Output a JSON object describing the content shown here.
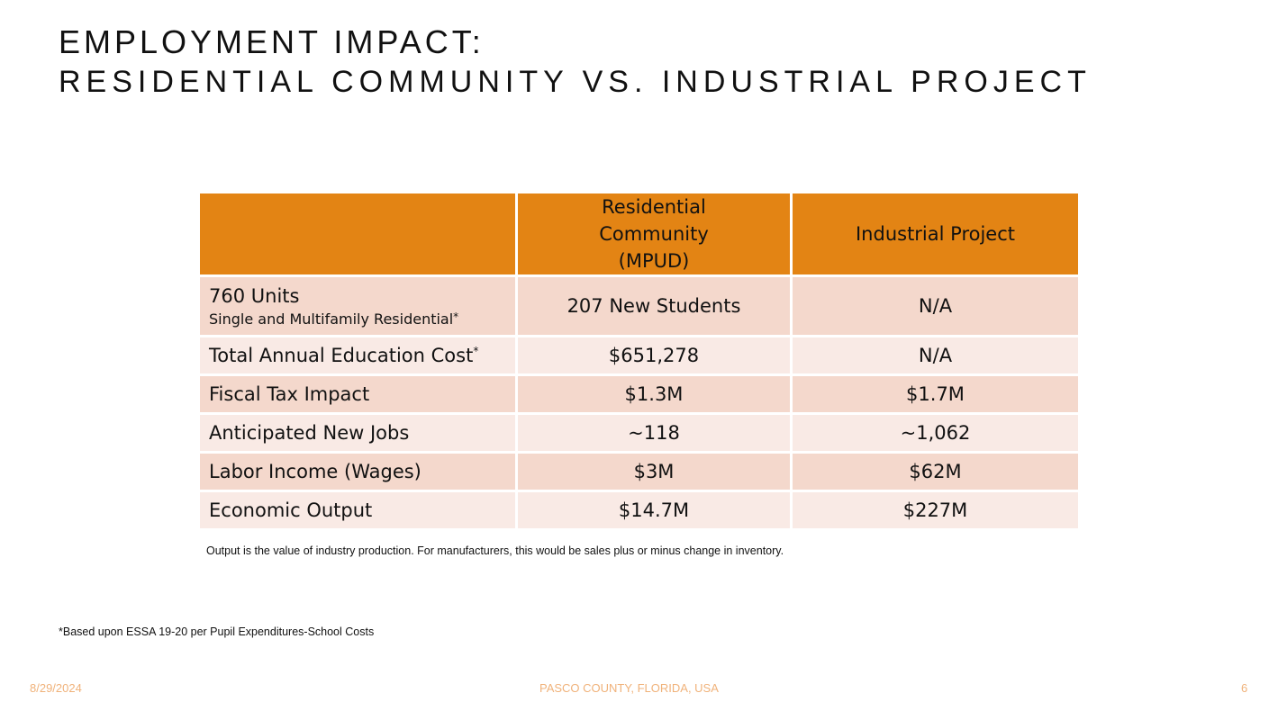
{
  "title": {
    "line1": "EMPLOYMENT IMPACT:",
    "line2": "RESIDENTIAL COMMUNITY VS. INDUSTRIAL PROJECT"
  },
  "table": {
    "headers": [
      "",
      "Residential Community (MPUD)",
      "Industrial Project"
    ],
    "rows": [
      {
        "label": "760 Units",
        "sub": "Single and Multifamily Residential",
        "ast": "*",
        "res": "207 New Students",
        "ind": "N/A"
      },
      {
        "label": "Total Annual Education Cost",
        "ast": "*",
        "res": "$651,278",
        "ind": "N/A"
      },
      {
        "label": "Fiscal Tax Impact",
        "res": "$1.3M",
        "ind": "$1.7M"
      },
      {
        "label": "Anticipated New Jobs",
        "res": "~118",
        "ind": "~1,062"
      },
      {
        "label": "Labor Income (Wages)",
        "res": "$3M",
        "ind": "$62M"
      },
      {
        "label": "Economic Output",
        "res": "$14.7M",
        "ind": "$227M"
      }
    ]
  },
  "note": "Output is the value of industry production. For manufacturers, this would be sales plus or minus change in inventory.",
  "footnote": "*Based upon ESSA 19-20 per Pupil Expenditures-School Costs",
  "footer": {
    "date": "8/29/2024",
    "center": "PASCO COUNTY, FLORIDA, USA",
    "page": "6"
  },
  "colors": {
    "header": "#E38414",
    "row_dark": "#F4D8CC",
    "row_light": "#F9EAE5",
    "footer": "#F0B27A"
  }
}
